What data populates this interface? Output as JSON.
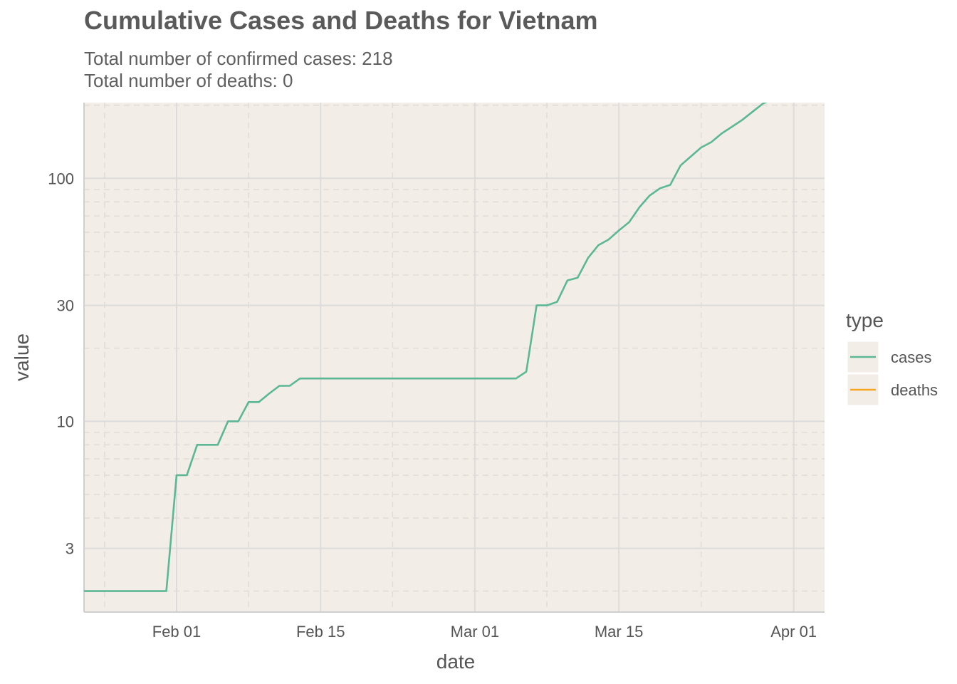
{
  "chart_data": {
    "type": "line",
    "title": "Cumulative Cases and Deaths for Vietnam",
    "subtitle": [
      "Total number of confirmed cases: 218",
      "Total number of deaths: 0"
    ],
    "xlabel": "date",
    "ylabel": "value",
    "y_scale": "log10",
    "xlim": [
      "2020-01-23",
      "2020-04-04"
    ],
    "ylim": [
      1.64,
      205
    ],
    "x_ticks": [
      {
        "date": "2020-02-01",
        "label": "Feb 01"
      },
      {
        "date": "2020-02-15",
        "label": "Feb 15"
      },
      {
        "date": "2020-03-01",
        "label": "Mar 01"
      },
      {
        "date": "2020-03-15",
        "label": "Mar 15"
      },
      {
        "date": "2020-04-01",
        "label": "Apr 01"
      }
    ],
    "y_ticks": [
      3,
      10,
      30,
      100
    ],
    "grid": true,
    "panel_background": "#f3ede7",
    "legend": {
      "title": "type",
      "position": "right"
    },
    "series": [
      {
        "name": "cases",
        "color": "#5bb795",
        "points": [
          [
            "2020-01-23",
            2
          ],
          [
            "2020-01-24",
            2
          ],
          [
            "2020-01-31",
            2
          ],
          [
            "2020-02-01",
            6
          ],
          [
            "2020-02-02",
            6
          ],
          [
            "2020-02-03",
            8
          ],
          [
            "2020-02-05",
            8
          ],
          [
            "2020-02-06",
            10
          ],
          [
            "2020-02-07",
            10
          ],
          [
            "2020-02-08",
            12
          ],
          [
            "2020-02-09",
            12
          ],
          [
            "2020-02-10",
            13
          ],
          [
            "2020-02-11",
            14
          ],
          [
            "2020-02-12",
            14
          ],
          [
            "2020-02-13",
            15
          ],
          [
            "2020-03-05",
            15
          ],
          [
            "2020-03-06",
            16
          ],
          [
            "2020-03-07",
            30
          ],
          [
            "2020-03-08",
            30
          ],
          [
            "2020-03-09",
            31
          ],
          [
            "2020-03-10",
            38
          ],
          [
            "2020-03-11",
            39
          ],
          [
            "2020-03-12",
            47
          ],
          [
            "2020-03-13",
            53
          ],
          [
            "2020-03-14",
            56
          ],
          [
            "2020-03-15",
            61
          ],
          [
            "2020-03-16",
            66
          ],
          [
            "2020-03-17",
            76
          ],
          [
            "2020-03-18",
            85
          ],
          [
            "2020-03-19",
            91
          ],
          [
            "2020-03-20",
            94
          ],
          [
            "2020-03-21",
            113
          ],
          [
            "2020-03-22",
            123
          ],
          [
            "2020-03-23",
            134
          ],
          [
            "2020-03-24",
            141
          ],
          [
            "2020-03-25",
            153
          ],
          [
            "2020-03-26",
            163
          ],
          [
            "2020-03-27",
            174
          ],
          [
            "2020-03-28",
            188
          ],
          [
            "2020-03-29",
            203
          ],
          [
            "2020-03-30",
            212
          ],
          [
            "2020-03-31",
            218
          ]
        ]
      },
      {
        "name": "deaths",
        "color": "#f5a623",
        "points": []
      }
    ]
  }
}
